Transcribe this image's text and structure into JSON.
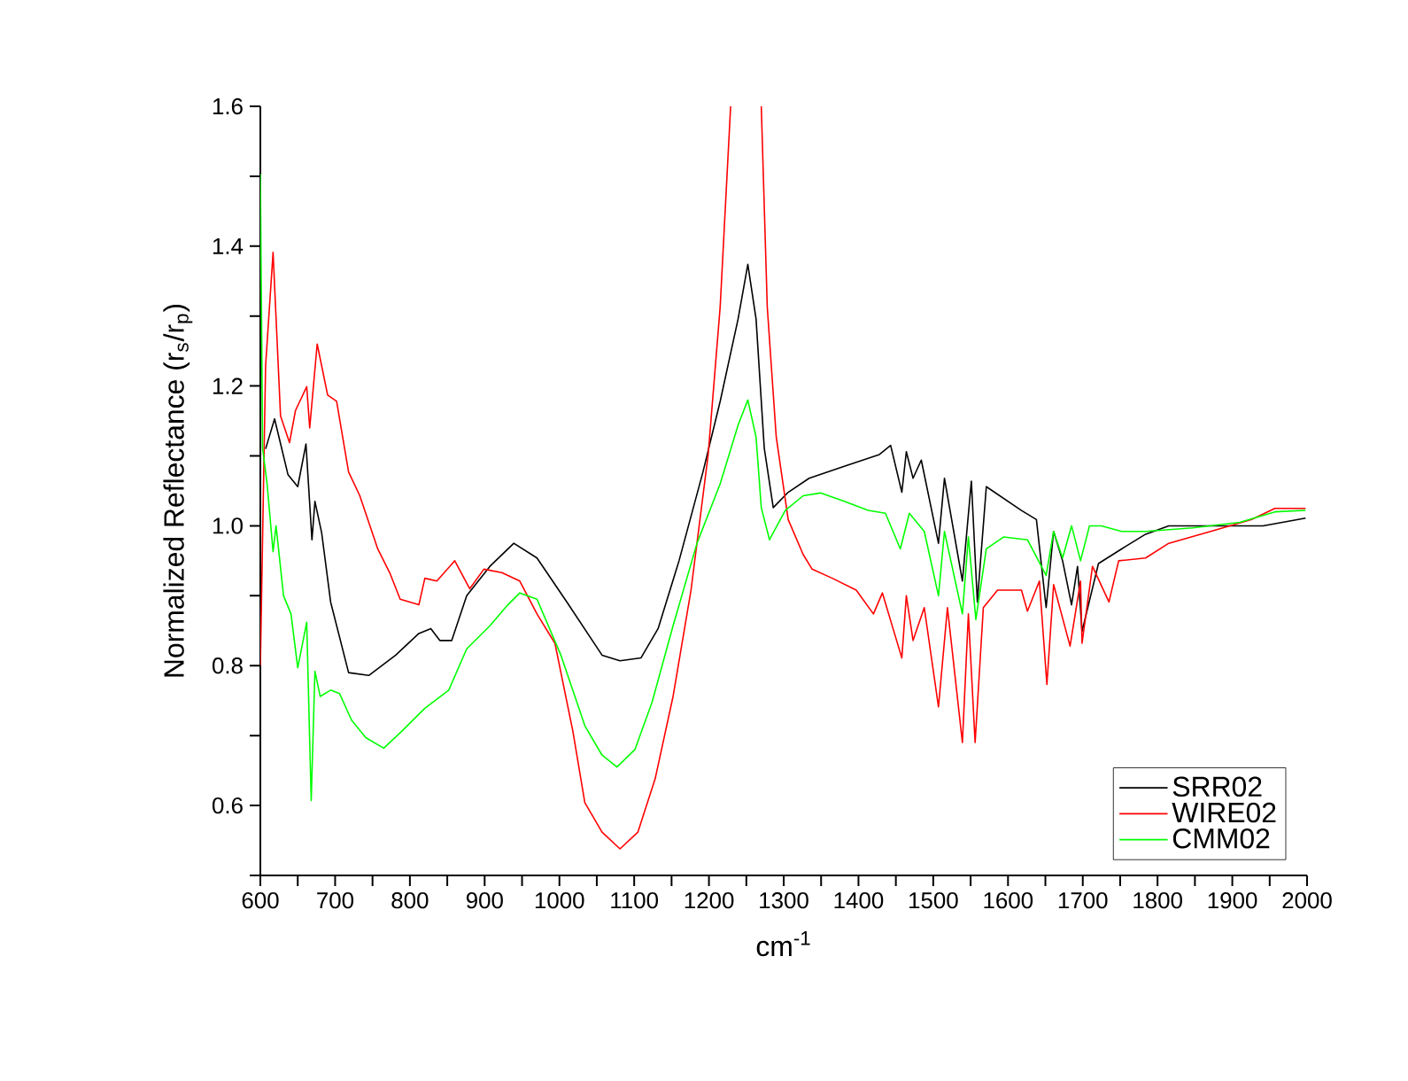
{
  "chart_data": {
    "type": "line",
    "xlabel": "cm$^{-1}$",
    "ylabel": "Normalized Reflectance (r$_{s}$/r$_{p}$)",
    "xlim": [
      600,
      2000
    ],
    "ylim": [
      0.5,
      1.6
    ],
    "xticks": [
      600,
      {
        "value": 650,
        "label": null
      },
      700,
      {
        "value": 750,
        "label": null
      },
      800,
      {
        "value": 850,
        "label": null
      },
      900,
      {
        "value": 950,
        "label": null
      },
      1000,
      {
        "value": 1050,
        "label": null
      },
      1100,
      {
        "value": 1150,
        "label": null
      },
      1200,
      {
        "value": 1250,
        "label": null
      },
      1300,
      {
        "value": 1350,
        "label": null
      },
      1400,
      {
        "value": 1450,
        "label": null
      },
      1500,
      {
        "value": 1550,
        "label": null
      },
      1600,
      {
        "value": 1650,
        "label": null
      },
      1700,
      {
        "value": 1750,
        "label": null
      },
      1800,
      {
        "value": 1850,
        "label": null
      },
      1900,
      {
        "value": 1950,
        "label": null
      },
      2000
    ],
    "yticks": [
      {
        "value": 0.5,
        "label": null
      },
      0.6,
      {
        "value": 0.7,
        "label": null
      },
      0.8,
      {
        "value": 0.9,
        "label": null
      },
      {
        "value": 1,
        "label": "1.0"
      },
      {
        "value": 1.1,
        "label": null
      },
      1.2,
      {
        "value": 1.3,
        "label": null
      },
      1.4,
      {
        "value": 1.5,
        "label": null
      },
      1.6
    ],
    "legend": "bottom right",
    "grid": false,
    "marker": "none",
    "line_style": "solid",
    "series": [
      {
        "name": "SRR02",
        "color": "#000000",
        "x": [
          607,
          619,
          637,
          650,
          661,
          669,
          673,
          682,
          694,
          718,
          745,
          781,
          812,
          828,
          840,
          856,
          876,
          907,
          939,
          970,
          1010,
          1057,
          1081,
          1109,
          1132,
          1160,
          1192,
          1215,
          1239,
          1252,
          1263,
          1274,
          1286,
          1306,
          1334,
          1381,
          1428,
          1443,
          1458,
          1464,
          1473,
          1484,
          1507,
          1515,
          1539,
          1551,
          1559,
          1571,
          1618,
          1638,
          1651,
          1661,
          1673,
          1685,
          1693,
          1699,
          1721,
          1752,
          1784,
          1815,
          1879,
          1941,
          1998
        ],
        "values": [
          1.11,
          1.153,
          1.073,
          1.056,
          1.117,
          0.98,
          1.035,
          0.99,
          0.891,
          0.79,
          0.786,
          0.815,
          0.846,
          0.853,
          0.836,
          0.836,
          0.9,
          0.942,
          0.975,
          0.954,
          0.891,
          0.815,
          0.807,
          0.811,
          0.853,
          0.95,
          1.077,
          1.178,
          1.296,
          1.374,
          1.296,
          1.111,
          1.026,
          1.048,
          1.068,
          1.085,
          1.102,
          1.115,
          1.048,
          1.106,
          1.068,
          1.094,
          0.975,
          1.068,
          0.921,
          1.064,
          0.891,
          1.056,
          1.022,
          1.009,
          0.883,
          0.992,
          0.95,
          0.887,
          0.942,
          0.849,
          0.946,
          0.967,
          0.988,
          1.0,
          1.0,
          1.0,
          1.011
        ]
      },
      {
        "name": "WIRE02",
        "color": "#ff0000",
        "x": [
          600,
          607,
          617,
          627,
          639,
          647,
          662,
          666,
          676,
          690,
          702,
          718,
          733,
          757,
          773,
          787,
          812,
          820,
          836,
          860,
          880,
          899,
          923,
          947,
          970,
          994,
          1018,
          1034,
          1057,
          1081,
          1105,
          1128,
          1152,
          1176,
          1199,
          1215,
          1229,
          1250,
          1270,
          1278,
          1290,
          1306,
          1326,
          1338,
          1365,
          1397,
          1420,
          1432,
          1458,
          1464,
          1473,
          1488,
          1507,
          1519,
          1539,
          1547,
          1556,
          1567,
          1586,
          1618,
          1626,
          1642,
          1652,
          1661,
          1683,
          1697,
          1699,
          1713,
          1735,
          1748,
          1784,
          1815,
          1871,
          1926,
          1957,
          1998
        ],
        "values": [
          0.8,
          1.229,
          1.391,
          1.157,
          1.119,
          1.165,
          1.199,
          1.14,
          1.26,
          1.187,
          1.178,
          1.077,
          1.043,
          0.967,
          0.933,
          0.895,
          0.887,
          0.925,
          0.921,
          0.95,
          0.91,
          0.938,
          0.933,
          0.921,
          0.874,
          0.832,
          0.706,
          0.604,
          0.562,
          0.538,
          0.562,
          0.638,
          0.756,
          0.908,
          1.102,
          1.313,
          1.6,
          null,
          1.6,
          1.313,
          1.127,
          1.009,
          0.959,
          0.938,
          0.925,
          0.908,
          0.874,
          0.904,
          0.811,
          0.9,
          0.836,
          0.883,
          0.741,
          0.883,
          0.69,
          0.874,
          0.69,
          0.883,
          0.908,
          0.908,
          0.878,
          0.921,
          0.773,
          0.916,
          0.828,
          0.921,
          0.832,
          0.942,
          0.891,
          0.95,
          0.954,
          0.975,
          0.992,
          1.009,
          1.025,
          1.025
        ]
      },
      {
        "name": "CMM02",
        "color": "#00ff00",
        "x": [
          600,
          603,
          609,
          617,
          621,
          631,
          641,
          650,
          662,
          668,
          673,
          680,
          694,
          706,
          722,
          741,
          765,
          789,
          820,
          852,
          876,
          907,
          931,
          947,
          970,
          1002,
          1034,
          1057,
          1077,
          1101,
          1124,
          1152,
          1184,
          1215,
          1239,
          1252,
          1263,
          1270,
          1281,
          1302,
          1326,
          1349,
          1381,
          1413,
          1436,
          1456,
          1468,
          1488,
          1507,
          1515,
          1539,
          1547,
          1557,
          1571,
          1594,
          1626,
          1651,
          1661,
          1673,
          1685,
          1697,
          1709,
          1725,
          1752,
          1784,
          1847,
          1910,
          1957,
          1998
        ],
        "values": [
          1.503,
          1.111,
          1.06,
          0.963,
          1.0,
          0.9,
          0.874,
          0.797,
          0.862,
          0.607,
          0.792,
          0.756,
          0.765,
          0.76,
          0.722,
          0.697,
          0.682,
          0.706,
          0.739,
          0.765,
          0.824,
          0.857,
          0.887,
          0.904,
          0.895,
          0.815,
          0.714,
          0.672,
          0.655,
          0.68,
          0.748,
          0.857,
          0.975,
          1.06,
          1.144,
          1.18,
          1.127,
          1.026,
          0.98,
          1.022,
          1.043,
          1.047,
          1.035,
          1.022,
          1.018,
          0.967,
          1.018,
          0.992,
          0.9,
          0.992,
          0.874,
          0.984,
          0.866,
          0.967,
          0.984,
          0.98,
          0.929,
          0.992,
          0.954,
          1.0,
          0.95,
          1.0,
          1.0,
          0.992,
          0.992,
          0.997,
          1.005,
          1.02,
          1.022
        ]
      }
    ]
  }
}
